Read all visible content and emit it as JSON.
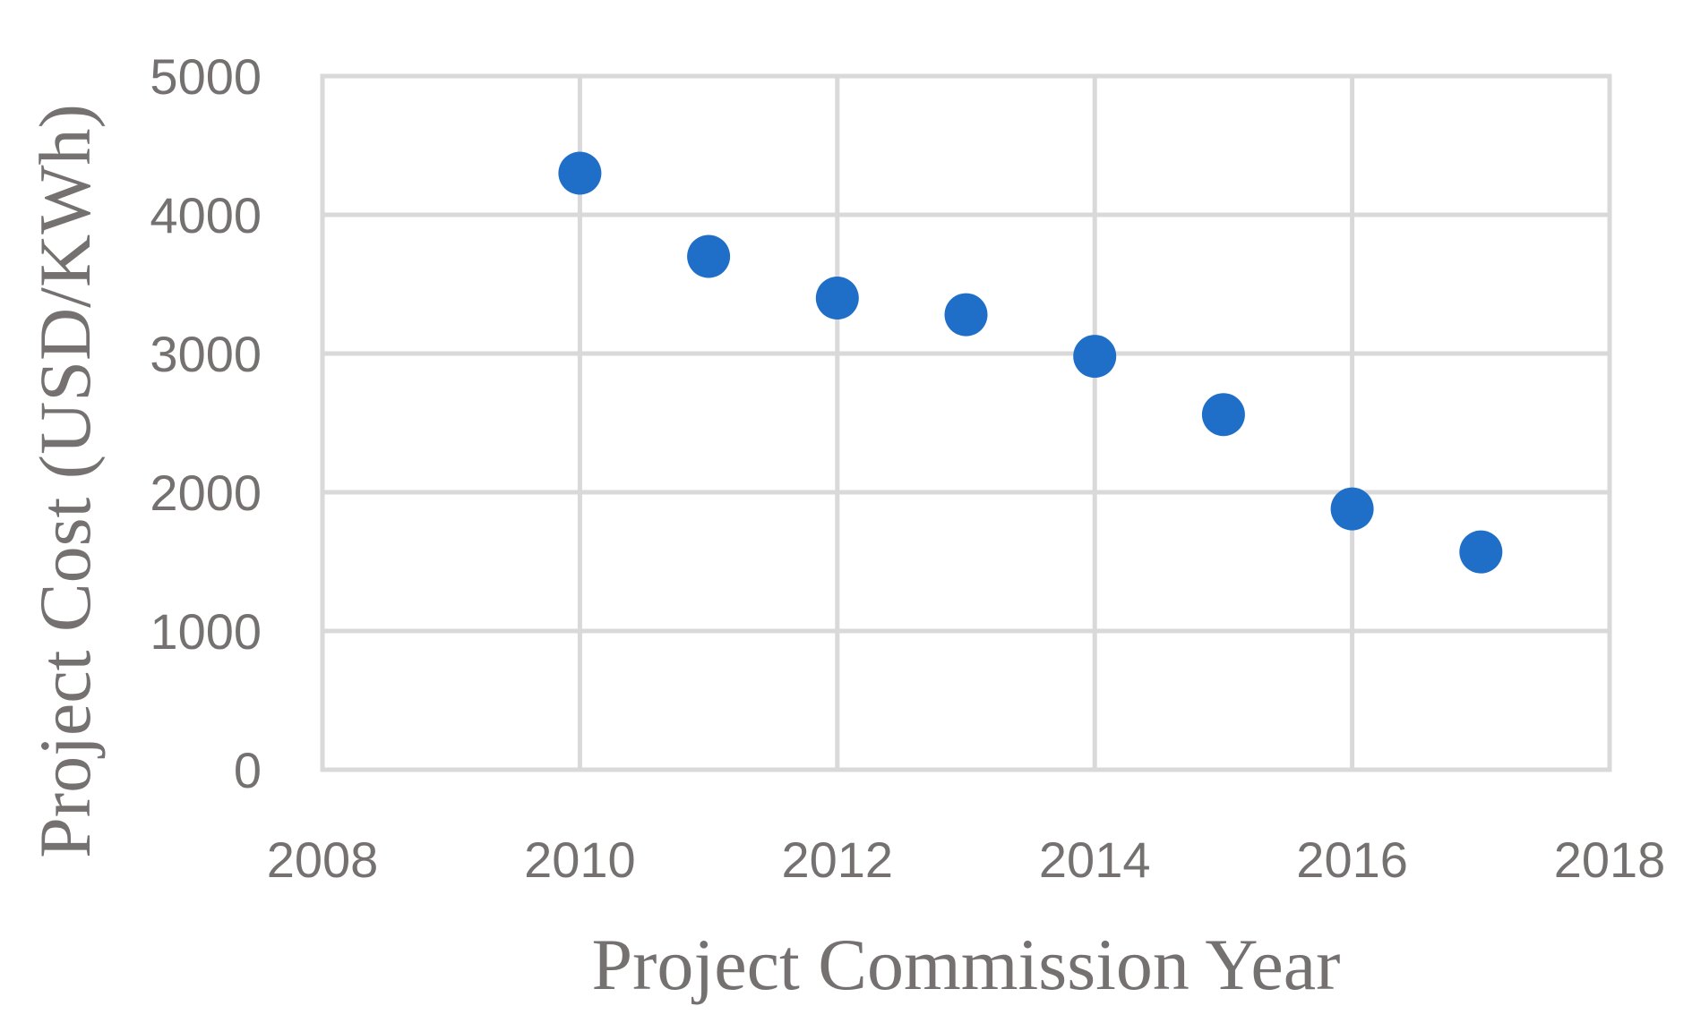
{
  "chart_data": {
    "type": "scatter",
    "title": "",
    "xlabel": "Project Commission Year",
    "ylabel": "Project Cost (USD/KWh)",
    "xlim": [
      2008,
      2018
    ],
    "ylim": [
      0,
      5000
    ],
    "xticks": [
      "2008",
      "2010",
      "2012",
      "2014",
      "2016",
      "2018"
    ],
    "yticks": [
      "0",
      "1000",
      "2000",
      "3000",
      "4000",
      "5000"
    ],
    "grid": true,
    "legend": "none",
    "point_color": "#1f6fc8",
    "series": [
      {
        "x": [
          2010,
          2011,
          2012,
          2013,
          2014,
          2015,
          2016,
          2017
        ],
        "y": [
          4300,
          3700,
          3400,
          3280,
          2980,
          2560,
          1880,
          1570
        ]
      }
    ]
  }
}
